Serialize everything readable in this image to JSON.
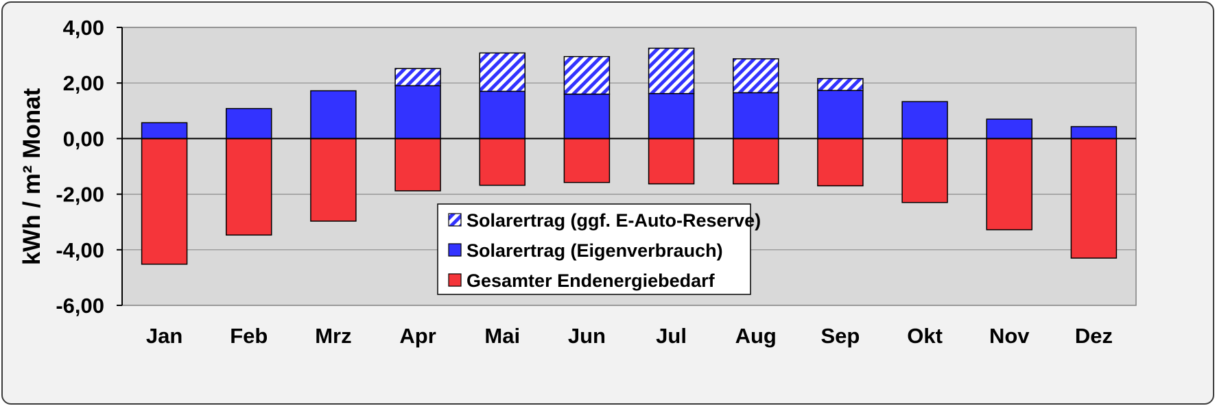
{
  "chart_data": {
    "type": "bar",
    "stacked": true,
    "title": "",
    "xlabel": "",
    "ylabel": "kWh / m² Monat",
    "ylim": [
      -6,
      4
    ],
    "yticks": [
      4,
      2,
      0,
      -2,
      -4,
      -6
    ],
    "ytick_labels": [
      "4,00",
      "2,00",
      "0,00",
      "-2,00",
      "-4,00",
      "-6,00"
    ],
    "grid": true,
    "legend_position": "bottom-center",
    "categories": [
      "Jan",
      "Feb",
      "Mrz",
      "Apr",
      "Mai",
      "Jun",
      "Jul",
      "Aug",
      "Sep",
      "Okt",
      "Nov",
      "Dez"
    ],
    "series": [
      {
        "name": "Solarertrag (ggf. E-Auto-Reserve)",
        "color": "#3333ff",
        "pattern": "diagonal-hatch",
        "values": [
          0,
          0,
          0,
          0.62,
          1.38,
          1.35,
          1.63,
          1.22,
          0.43,
          0,
          0,
          0
        ]
      },
      {
        "name": "Solarertrag (Eigenverbrauch)",
        "color": "#3333ff",
        "values": [
          0.57,
          1.08,
          1.72,
          1.9,
          1.7,
          1.6,
          1.62,
          1.65,
          1.73,
          1.33,
          0.7,
          0.43
        ]
      },
      {
        "name": "Gesamter Endenergiebedarf",
        "color": "#f5353a",
        "values": [
          -4.52,
          -3.47,
          -2.97,
          -1.88,
          -1.68,
          -1.58,
          -1.63,
          -1.63,
          -1.7,
          -2.3,
          -3.28,
          -4.3
        ]
      }
    ],
    "plot_background": "#d9d9d9",
    "frame_background": "#f2f2f2"
  }
}
